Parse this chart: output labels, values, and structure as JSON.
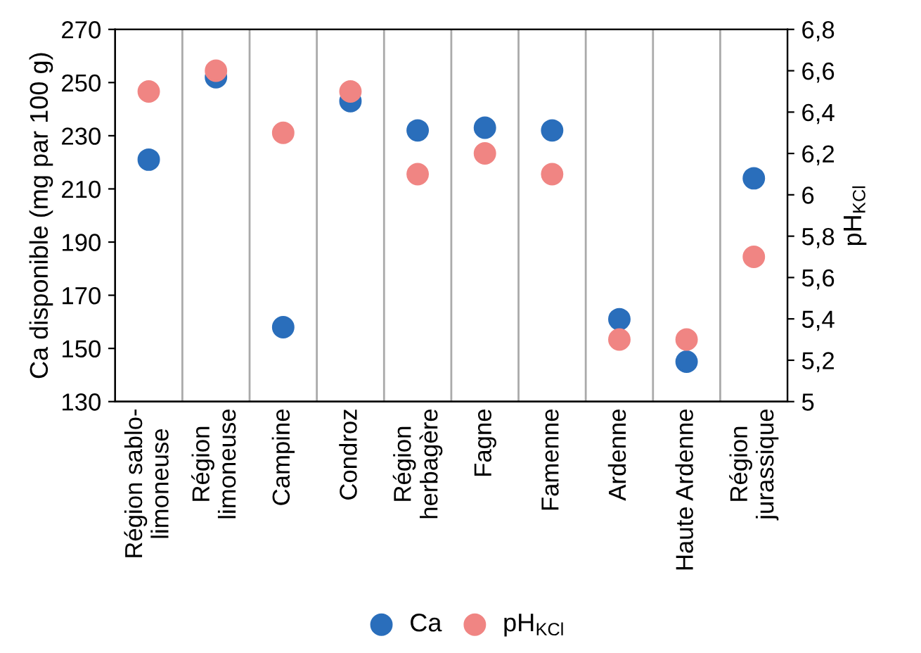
{
  "chart_data": {
    "type": "scatter",
    "ylabel": "Ca disponible (mg par 100 g)",
    "y2label": "pH$_{KCl}$",
    "categories": [
      "Région sablo-\nlimoneuse",
      "Région\nlimoneuse",
      "Campine",
      "Condroz",
      "Région\nherbagère",
      "Fagne",
      "Famenne",
      "Ardenne",
      "Haute Ardenne",
      "Région\njurassique"
    ],
    "series": [
      {
        "name": "Ca",
        "color": "#2a6ebb",
        "values": [
          221,
          252,
          158,
          243,
          232,
          233,
          232,
          161,
          145,
          214
        ]
      },
      {
        "name": "pH$_{KCl}$",
        "color": "#f08583",
        "axis": "y2",
        "values": [
          6.5,
          6.6,
          6.3,
          6.5,
          6.1,
          6.2,
          6.1,
          5.3,
          5.3,
          5.7
        ]
      }
    ],
    "ylim": [
      130,
      270
    ],
    "yticks": [
      130,
      150,
      170,
      190,
      210,
      230,
      250,
      270
    ],
    "y2lim": [
      5,
      6.8
    ],
    "y2ticks": [
      {
        "value": 5,
        "label": "5"
      },
      {
        "value": 5.2,
        "label": "5,2"
      },
      {
        "value": 5.4,
        "label": "5,4"
      },
      {
        "value": 5.6,
        "label": "5,6"
      },
      {
        "value": 5.8,
        "label": "5,8"
      },
      {
        "value": 6,
        "label": "6"
      },
      {
        "value": 6.2,
        "label": "6,2"
      },
      {
        "value": 6.4,
        "label": "6,4"
      },
      {
        "value": 6.6,
        "label": "6,6"
      },
      {
        "value": 6.8,
        "label": "6,8"
      }
    ],
    "grid": "x",
    "legend": "bottom",
    "marker": "circle"
  }
}
